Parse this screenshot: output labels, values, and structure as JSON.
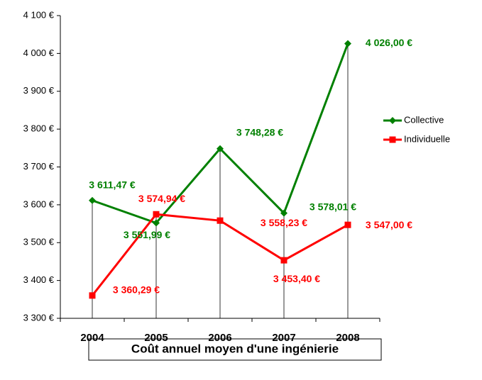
{
  "chart_data": {
    "type": "line",
    "title": "Coût annuel moyen d'une ingénierie",
    "categories": [
      "2004",
      "2005",
      "2006",
      "2007",
      "2008"
    ],
    "series": [
      {
        "name": "Collective",
        "color": "#008000",
        "marker": "diamond",
        "values": [
          3611.47,
          3551.99,
          3748.28,
          3578.01,
          4026.0
        ],
        "value_labels": [
          "3 611,47 €",
          "3 551,99 €",
          "3 748,28 €",
          "3 578,01 €",
          "4 026,00 €"
        ]
      },
      {
        "name": "Individuelle",
        "color": "#ff0000",
        "marker": "square",
        "values": [
          3360.29,
          3574.94,
          3558.23,
          3453.4,
          3547.0
        ],
        "value_labels": [
          "3 360,29 €",
          "3 574,94 €",
          "3 558,23 €",
          "3 453,40 €",
          "3 547,00 €"
        ]
      }
    ],
    "ylim": [
      3300,
      4100
    ],
    "yticks": [
      {
        "value": 3300,
        "label": "3 300 €"
      },
      {
        "value": 3400,
        "label": "3 400 €"
      },
      {
        "value": 3500,
        "label": "3 500 €"
      },
      {
        "value": 3600,
        "label": "3 600 €"
      },
      {
        "value": 3700,
        "label": "3 700 €"
      },
      {
        "value": 3800,
        "label": "3 800 €"
      },
      {
        "value": 3900,
        "label": "3 900 €"
      },
      {
        "value": 4000,
        "label": "4 000 €"
      },
      {
        "value": 4100,
        "label": "4 100 €"
      }
    ],
    "legend": "right",
    "drop_lines": true
  }
}
